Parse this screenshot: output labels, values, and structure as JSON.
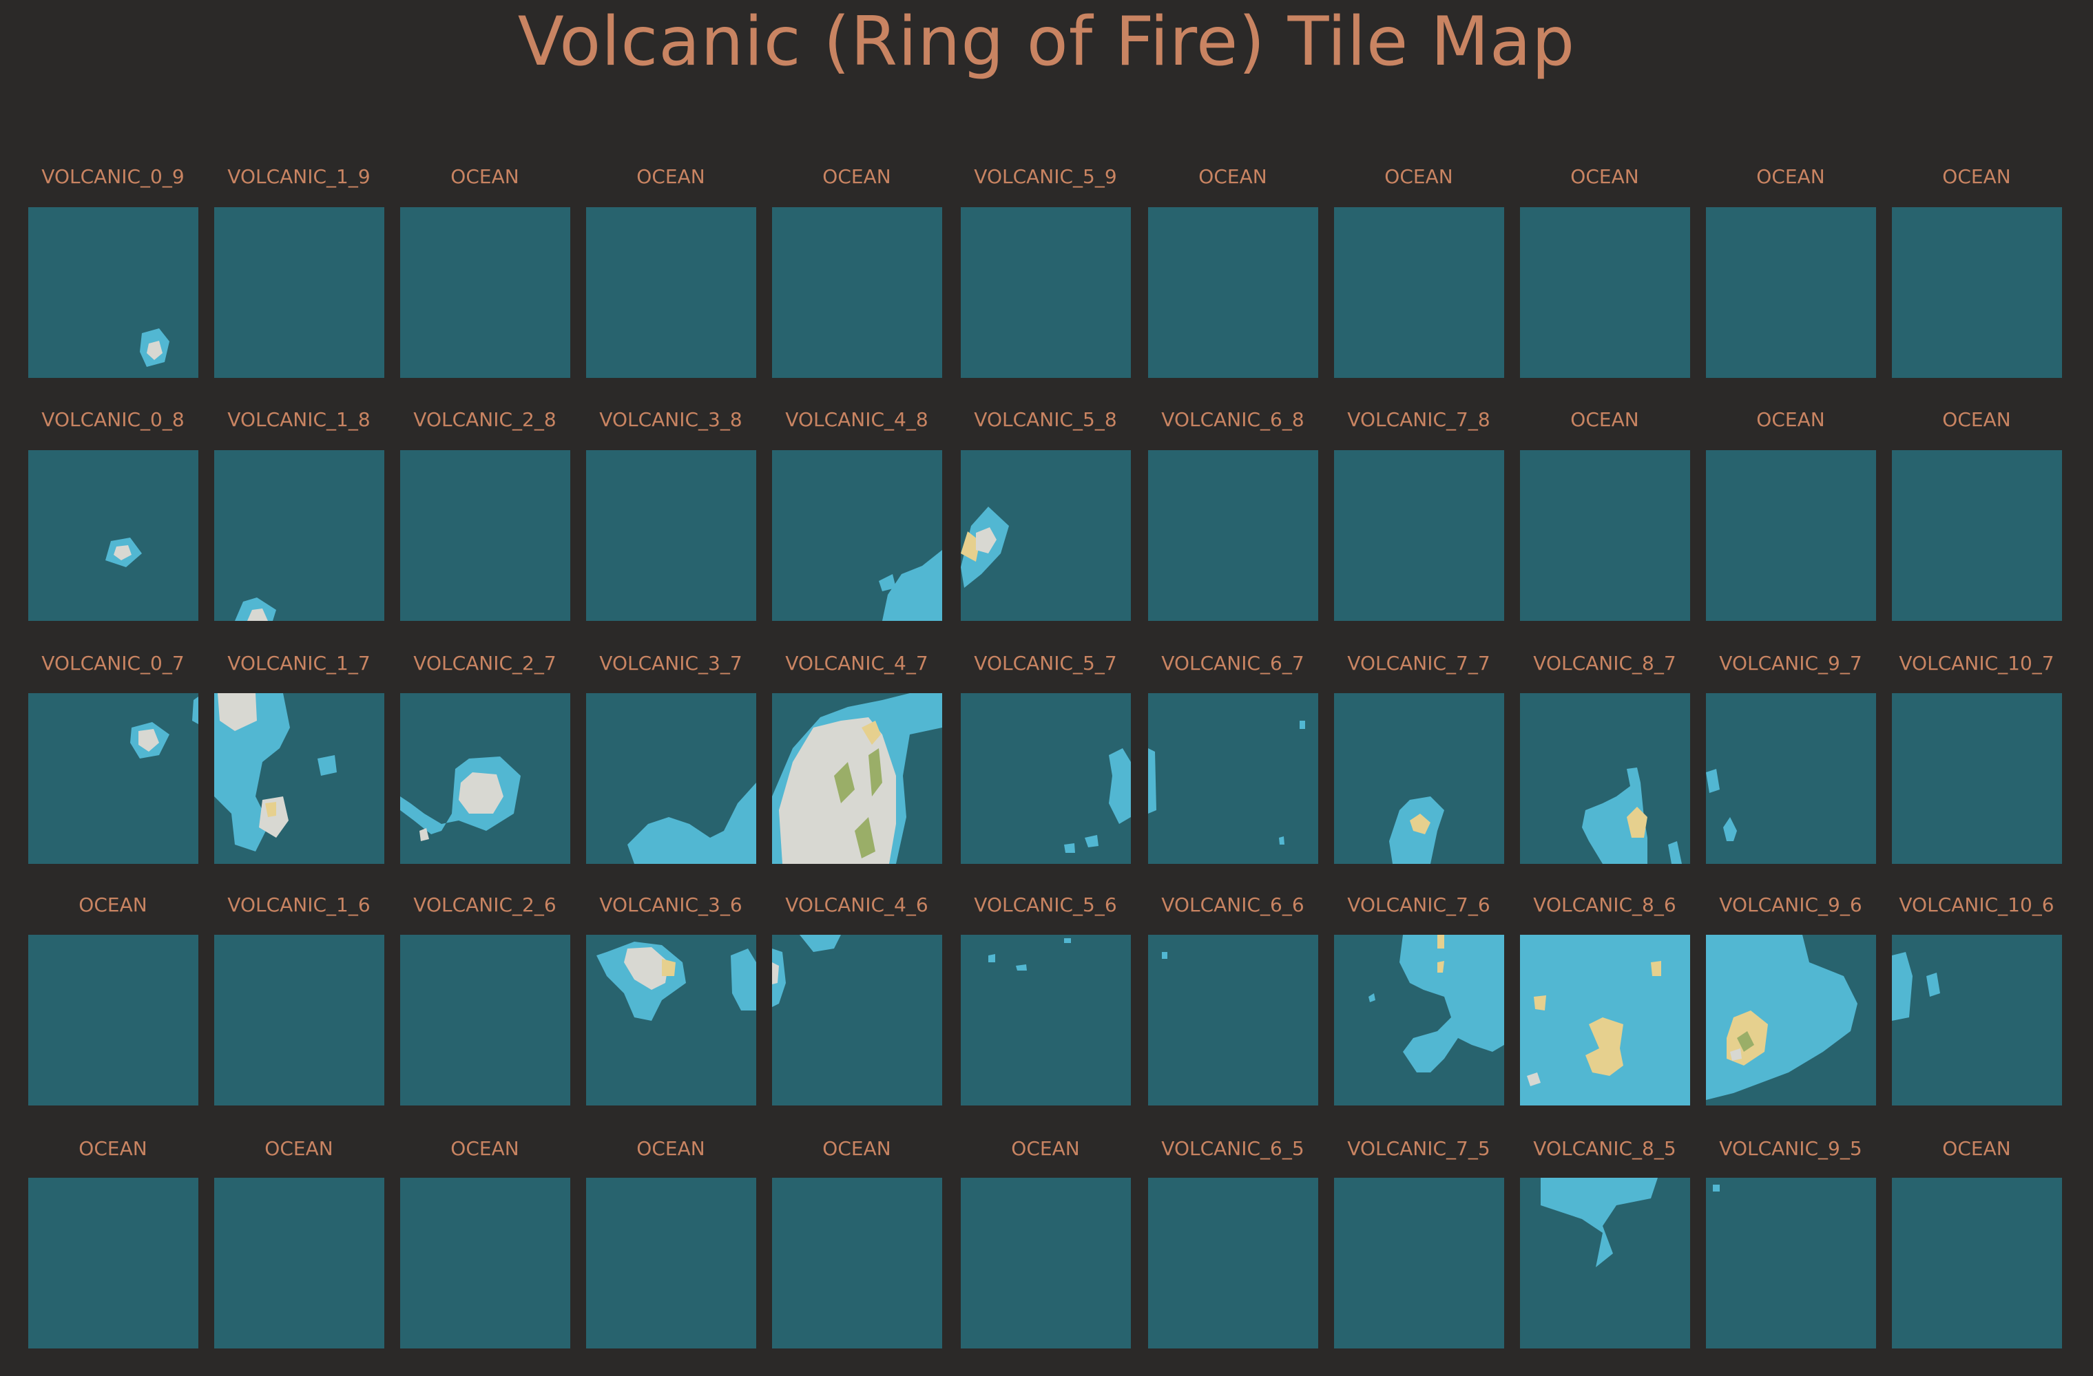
{
  "title": "Volcanic (Ring of Fire) Tile Map",
  "colors": {
    "background": "#2b2928",
    "ocean": "#28636e",
    "shallow_water": "#52b7d2",
    "sand": "#e6d08e",
    "rock": "#d8d8d2",
    "vegetation": "#9aae68",
    "label": "#c98462"
  },
  "rows": [
    [
      "VOLCANIC_0_9",
      "VOLCANIC_1_9",
      "OCEAN",
      "OCEAN",
      "OCEAN",
      "VOLCANIC_5_9",
      "OCEAN",
      "OCEAN",
      "OCEAN",
      "OCEAN",
      "OCEAN"
    ],
    [
      "VOLCANIC_0_8",
      "VOLCANIC_1_8",
      "VOLCANIC_2_8",
      "VOLCANIC_3_8",
      "VOLCANIC_4_8",
      "VOLCANIC_5_8",
      "VOLCANIC_6_8",
      "VOLCANIC_7_8",
      "OCEAN",
      "OCEAN",
      "OCEAN"
    ],
    [
      "VOLCANIC_0_7",
      "VOLCANIC_1_7",
      "VOLCANIC_2_7",
      "VOLCANIC_3_7",
      "VOLCANIC_4_7",
      "VOLCANIC_5_7",
      "VOLCANIC_6_7",
      "VOLCANIC_7_7",
      "VOLCANIC_8_7",
      "VOLCANIC_9_7",
      "VOLCANIC_10_7"
    ],
    [
      "OCEAN",
      "VOLCANIC_1_6",
      "VOLCANIC_2_6",
      "VOLCANIC_3_6",
      "VOLCANIC_4_6",
      "VOLCANIC_5_6",
      "VOLCANIC_6_6",
      "VOLCANIC_7_6",
      "VOLCANIC_8_6",
      "VOLCANIC_9_6",
      "VOLCANIC_10_6"
    ],
    [
      "OCEAN",
      "OCEAN",
      "OCEAN",
      "OCEAN",
      "OCEAN",
      "OCEAN",
      "VOLCANIC_6_5",
      "VOLCANIC_7_5",
      "VOLCANIC_8_5",
      "VOLCANIC_9_5",
      "OCEAN"
    ]
  ]
}
